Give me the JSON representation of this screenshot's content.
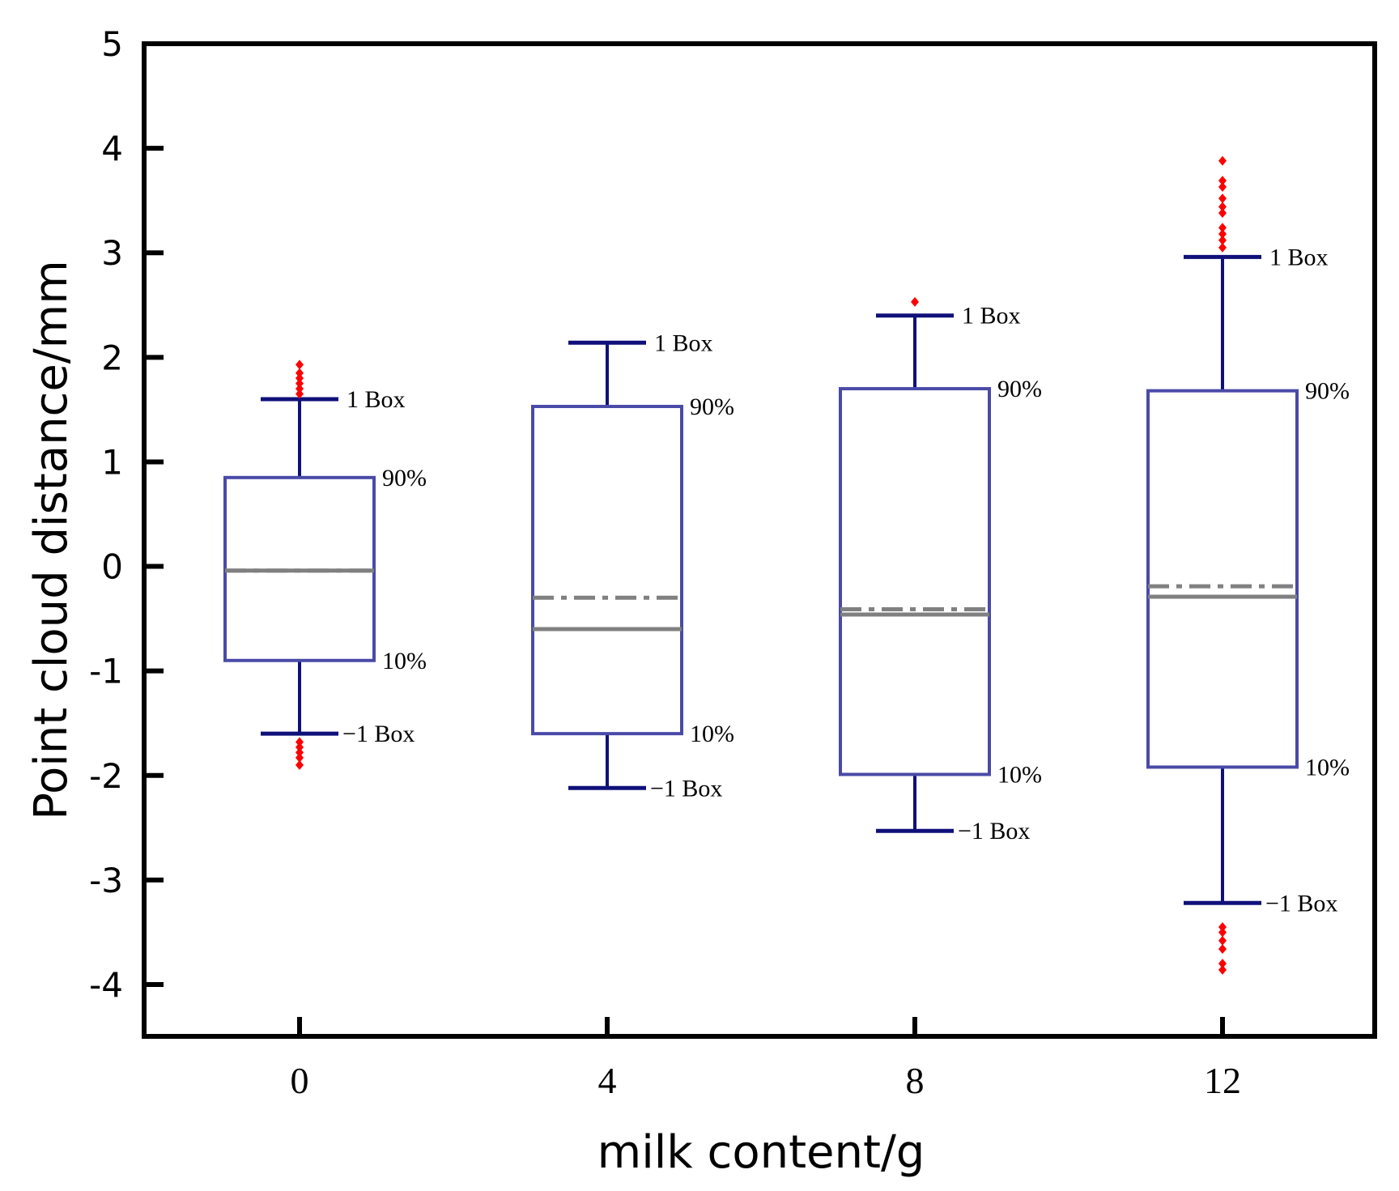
{
  "chart_data": {
    "type": "box",
    "title": "",
    "xlabel": "milk content/g",
    "ylabel": "Point cloud distance/mm",
    "ylim": [
      -4.5,
      5
    ],
    "yticks": [
      -4,
      -3,
      -2,
      -1,
      0,
      1,
      2,
      3,
      4,
      5
    ],
    "categories": [
      "0",
      "4",
      "8",
      "12"
    ],
    "labels": {
      "upper_whisker": "1  Box",
      "lower_whisker": "−1  Box",
      "box_top": "90%",
      "box_bottom": "10%"
    },
    "colors": {
      "box": "#4a4aa8",
      "whisker": "#10107a",
      "median": "#808080",
      "mean": "#808080",
      "outlier": "#ff0000",
      "axis": "#000000"
    },
    "groups": [
      {
        "category": "0",
        "whisker_high": 1.6,
        "box_top": 0.85,
        "median": -0.04,
        "mean": -0.04,
        "box_bottom": -0.9,
        "whisker_low": -1.6,
        "outliers": [
          1.65,
          1.7,
          1.75,
          1.8,
          1.85,
          1.93,
          -1.68,
          -1.73,
          -1.78,
          -1.83,
          -1.9
        ]
      },
      {
        "category": "4",
        "whisker_high": 2.14,
        "box_top": 1.53,
        "median": -0.6,
        "mean": -0.3,
        "box_bottom": -1.6,
        "whisker_low": -2.12,
        "outliers": []
      },
      {
        "category": "8",
        "whisker_high": 2.4,
        "box_top": 1.7,
        "median": -0.46,
        "mean": -0.41,
        "box_bottom": -1.99,
        "whisker_low": -2.53,
        "outliers": [
          2.53
        ]
      },
      {
        "category": "12",
        "whisker_high": 2.96,
        "box_top": 1.68,
        "median": -0.29,
        "mean": -0.19,
        "box_bottom": -1.92,
        "whisker_low": -3.22,
        "outliers": [
          3.05,
          3.12,
          3.18,
          3.24,
          3.38,
          3.44,
          3.52,
          3.63,
          3.69,
          3.88,
          -3.45,
          -3.5,
          -3.58,
          -3.66,
          -3.8,
          -3.86
        ]
      }
    ]
  }
}
